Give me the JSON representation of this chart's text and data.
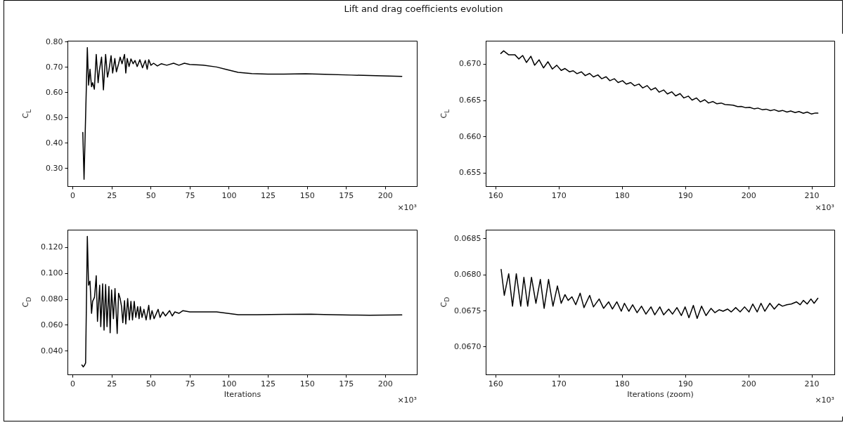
{
  "chart_data": [
    {
      "type": "line",
      "title": "Lift and drag coefficients evolution",
      "ylabel": "C$_{L}$",
      "annotations": [
        "×10³"
      ],
      "xlim": [
        -3.2,
        220.3
      ],
      "ylim": [
        0.228,
        0.804
      ],
      "xticks": [
        0,
        25,
        50,
        75,
        100,
        125,
        150,
        175,
        200
      ],
      "yticks": [
        {
          "value": 0.3,
          "label": "0.30"
        },
        {
          "value": 0.4,
          "label": "0.40"
        },
        {
          "value": 0.5,
          "label": "0.50"
        },
        {
          "value": 0.6,
          "label": "0.60"
        },
        {
          "value": 0.7,
          "label": "0.70"
        },
        {
          "value": 0.8,
          "label": "0.80"
        }
      ],
      "grid": false,
      "x": [
        6.6,
        7.4,
        9.5,
        10.3,
        11.2,
        12.2,
        12.9,
        14.0,
        15.2,
        16.4,
        17.2,
        18.6,
        19.8,
        21.2,
        22.4,
        23.3,
        24.7,
        25.7,
        27.1,
        28.1,
        29.5,
        30.5,
        31.7,
        33.3,
        34.1,
        35.0,
        36.2,
        37.4,
        38.8,
        40.0,
        41.4,
        43.1,
        44.8,
        46.6,
        47.8,
        48.8,
        50.2,
        51.9,
        54.3,
        56.9,
        60.3,
        64.7,
        68.1,
        71.6,
        75.0,
        83.6,
        92.2,
        99.1,
        106,
        114.7,
        125,
        135.3,
        149.1,
        161.2,
        178.4,
        210.7
      ],
      "series": [
        {
          "color": "#000000",
          "values": [
            0.441,
            0.255,
            0.777,
            0.628,
            0.691,
            0.622,
            0.638,
            0.612,
            0.75,
            0.638,
            0.686,
            0.739,
            0.609,
            0.75,
            0.66,
            0.686,
            0.745,
            0.676,
            0.734,
            0.681,
            0.713,
            0.739,
            0.713,
            0.75,
            0.676,
            0.734,
            0.702,
            0.732,
            0.713,
            0.726,
            0.702,
            0.729,
            0.697,
            0.726,
            0.691,
            0.729,
            0.707,
            0.715,
            0.704,
            0.713,
            0.707,
            0.715,
            0.707,
            0.715,
            0.71,
            0.707,
            0.7,
            0.689,
            0.679,
            0.674,
            0.672,
            0.672,
            0.673,
            0.671,
            0.668,
            0.663
          ]
        }
      ]
    },
    {
      "type": "line",
      "ylabel": "C$_{L}$",
      "annotations": [
        "×10³"
      ],
      "xlim": [
        158.46,
        213.6
      ],
      "ylim": [
        0.65313,
        0.67319
      ],
      "xticks": [
        160,
        170,
        180,
        190,
        200,
        210
      ],
      "yticks": [
        {
          "value": 0.655,
          "label": "0.655"
        },
        {
          "value": 0.66,
          "label": "0.660"
        },
        {
          "value": 0.665,
          "label": "0.665"
        },
        {
          "value": 0.67,
          "label": "0.670"
        }
      ],
      "grid": false,
      "x": [
        160.85,
        161.3,
        162.1,
        163.1,
        163.7,
        164.3,
        164.9,
        165.6,
        166.2,
        166.9,
        167.6,
        168.3,
        169.0,
        169.7,
        170.4,
        171.0,
        171.7,
        172.3,
        172.9,
        173.6,
        174.2,
        174.9,
        175.5,
        176.2,
        176.8,
        177.5,
        178.1,
        178.8,
        179.4,
        180.1,
        180.7,
        181.4,
        182.0,
        182.7,
        183.3,
        184.0,
        184.6,
        185.3,
        185.9,
        186.6,
        187.2,
        187.9,
        188.5,
        189.2,
        189.8,
        190.5,
        191.1,
        191.8,
        192.4,
        193.1,
        193.7,
        194.4,
        195.0,
        195.7,
        196.3,
        197.0,
        197.6,
        198.3,
        198.9,
        199.6,
        200.2,
        200.9,
        201.5,
        202.2,
        202.8,
        203.5,
        204.1,
        204.8,
        205.4,
        206.1,
        206.7,
        207.4,
        208.0,
        208.7,
        209.3,
        210.0,
        210.6,
        211.0
      ],
      "series": [
        {
          "color": "#000000",
          "values": [
            0.67143,
            0.6718,
            0.67124,
            0.67124,
            0.67068,
            0.67116,
            0.67019,
            0.67105,
            0.66981,
            0.67056,
            0.66944,
            0.6703,
            0.66929,
            0.66981,
            0.6691,
            0.66936,
            0.66891,
            0.66905,
            0.66865,
            0.6689,
            0.66838,
            0.66868,
            0.6682,
            0.66848,
            0.66795,
            0.66822,
            0.66768,
            0.66795,
            0.66742,
            0.66768,
            0.6672,
            0.66742,
            0.66698,
            0.66722,
            0.66668,
            0.667,
            0.6664,
            0.6667,
            0.6661,
            0.6664,
            0.66585,
            0.66615,
            0.66558,
            0.6659,
            0.6653,
            0.66555,
            0.665,
            0.6653,
            0.66475,
            0.66505,
            0.6646,
            0.6648,
            0.6645,
            0.6646,
            0.6644,
            0.66435,
            0.6643,
            0.6641,
            0.66412,
            0.66395,
            0.664,
            0.6638,
            0.6639,
            0.66368,
            0.66375,
            0.66355,
            0.66368,
            0.66345,
            0.66358,
            0.66335,
            0.6635,
            0.66328,
            0.66342,
            0.66318,
            0.66335,
            0.66308,
            0.66322,
            0.6632
          ]
        }
      ]
    },
    {
      "type": "line",
      "xlabel": "Iterations",
      "ylabel": "C$_{D}$",
      "annotations": [
        "×10³"
      ],
      "xlim": [
        -3.2,
        220.3
      ],
      "ylim": [
        0.0218,
        0.1334
      ],
      "xticks": [
        0,
        25,
        50,
        75,
        100,
        125,
        150,
        175,
        200
      ],
      "yticks": [
        {
          "value": 0.04,
          "label": "0.040"
        },
        {
          "value": 0.06,
          "label": "0.060"
        },
        {
          "value": 0.08,
          "label": "0.080"
        },
        {
          "value": 0.1,
          "label": "0.100"
        },
        {
          "value": 0.12,
          "label": "0.120"
        }
      ],
      "grid": false,
      "x": [
        6.0,
        6.9,
        7.8,
        8.4,
        9.5,
        10.3,
        11.2,
        12.2,
        12.9,
        14.1,
        15.2,
        16.0,
        17.4,
        18.1,
        19.3,
        20.2,
        21.2,
        22.1,
        23.3,
        24.1,
        25.0,
        26.2,
        27.2,
        28.6,
        29.5,
        30.5,
        31.4,
        32.2,
        33.3,
        34.1,
        35.3,
        36.4,
        37.4,
        38.4,
        39.5,
        40.5,
        41.7,
        42.6,
        43.4,
        44.5,
        45.7,
        47.1,
        48.8,
        49.7,
        50.9,
        52.2,
        54.8,
        56.0,
        57.8,
        59.5,
        62.1,
        63.8,
        65.5,
        68.1,
        70.7,
        75.0,
        83.6,
        92.2,
        99.1,
        106.0,
        118.1,
        135.3,
        152.6,
        161.0,
        178.4,
        190.0,
        210.7
      ],
      "series": [
        {
          "color": "#000000",
          "values": [
            0.0291,
            0.0276,
            0.0291,
            0.0307,
            0.1283,
            0.0906,
            0.0937,
            0.0689,
            0.0782,
            0.0813,
            0.0979,
            0.0627,
            0.0906,
            0.0586,
            0.0917,
            0.0559,
            0.0911,
            0.0586,
            0.0896,
            0.0539,
            0.0869,
            0.0648,
            0.088,
            0.0534,
            0.0844,
            0.0803,
            0.0741,
            0.0617,
            0.0787,
            0.0607,
            0.0803,
            0.0638,
            0.0782,
            0.0638,
            0.0782,
            0.0658,
            0.0741,
            0.0648,
            0.0741,
            0.0658,
            0.072,
            0.0638,
            0.0751,
            0.0642,
            0.071,
            0.0648,
            0.072,
            0.0658,
            0.07,
            0.0669,
            0.071,
            0.0669,
            0.07,
            0.0689,
            0.071,
            0.07,
            0.07,
            0.07,
            0.0689,
            0.0679,
            0.0679,
            0.0681,
            0.0683,
            0.068,
            0.0676,
            0.0675,
            0.0677
          ]
        }
      ]
    },
    {
      "type": "line",
      "xlabel": "Iterations (zoom)",
      "ylabel": "C$_{D}$",
      "annotations": [
        "×10³"
      ],
      "xlim": [
        158.46,
        213.6
      ],
      "ylim": [
        0.066614,
        0.06862
      ],
      "xticks": [
        160,
        170,
        180,
        190,
        200,
        210
      ],
      "yticks": [
        {
          "value": 0.067,
          "label": "0.0670"
        },
        {
          "value": 0.0675,
          "label": "0.0675"
        },
        {
          "value": 0.068,
          "label": "0.0680"
        },
        {
          "value": 0.0685,
          "label": "0.0685"
        }
      ],
      "grid": false,
      "x": [
        160.9,
        161.4,
        162.1,
        162.7,
        163.3,
        164.0,
        164.5,
        165.1,
        165.7,
        166.4,
        167.1,
        167.7,
        168.4,
        169.1,
        169.8,
        170.4,
        171.0,
        171.5,
        172.1,
        172.7,
        173.4,
        174.0,
        174.9,
        175.5,
        176.4,
        177.1,
        177.9,
        178.5,
        179.2,
        179.9,
        180.4,
        181.1,
        181.7,
        182.4,
        183.1,
        183.8,
        184.6,
        185.2,
        186.0,
        186.6,
        187.4,
        188.0,
        188.7,
        189.4,
        190.0,
        190.6,
        191.3,
        191.9,
        192.6,
        193.3,
        194.1,
        194.7,
        195.4,
        196.0,
        196.7,
        197.3,
        198.0,
        198.7,
        199.4,
        200.1,
        200.7,
        201.4,
        202.0,
        202.6,
        203.4,
        204.1,
        204.8,
        205.4,
        206.1,
        206.8,
        207.6,
        208.2,
        208.7,
        209.3,
        209.9,
        210.4,
        211.0
      ],
      "series": [
        {
          "color": "#000000",
          "values": [
            0.06807,
            0.06771,
            0.06801,
            0.06756,
            0.06801,
            0.06756,
            0.06796,
            0.06756,
            0.06796,
            0.0676,
            0.06793,
            0.06753,
            0.06793,
            0.06756,
            0.06784,
            0.0676,
            0.06772,
            0.06764,
            0.06769,
            0.06758,
            0.06774,
            0.06754,
            0.06771,
            0.06755,
            0.06766,
            0.06753,
            0.06762,
            0.06752,
            0.06762,
            0.06749,
            0.0676,
            0.06749,
            0.06758,
            0.06747,
            0.06756,
            0.06745,
            0.06755,
            0.06744,
            0.06755,
            0.06744,
            0.06752,
            0.06745,
            0.06754,
            0.06743,
            0.06755,
            0.0674,
            0.06757,
            0.06739,
            0.06756,
            0.06743,
            0.06753,
            0.06747,
            0.06751,
            0.06749,
            0.06752,
            0.06748,
            0.06754,
            0.06748,
            0.06755,
            0.06748,
            0.06759,
            0.06748,
            0.0676,
            0.06749,
            0.0676,
            0.06752,
            0.06759,
            0.06756,
            0.06758,
            0.06759,
            0.06762,
            0.06758,
            0.06764,
            0.06759,
            0.06766,
            0.0676,
            0.06767
          ]
        }
      ]
    }
  ]
}
